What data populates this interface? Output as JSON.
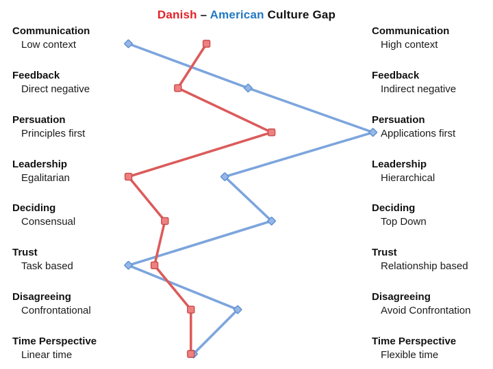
{
  "title": {
    "danish": "Danish",
    "dash": " – ",
    "american": "American",
    "rest": " Culture Gap",
    "danish_color": "#E32127",
    "american_color": "#1F78C1",
    "rest_color": "#111111"
  },
  "chart_data": {
    "type": "line",
    "title": "Danish – American Culture Gap",
    "orientation": "horizontal-scale-per-category-row",
    "grid": false,
    "legend_position": "in-title",
    "axis": {
      "min": 0,
      "max": 100
    },
    "categories": [
      "Communication",
      "Feedback",
      "Persuation",
      "Leadership",
      "Deciding",
      "Trust",
      "Disagreeing",
      "Time Perspective"
    ],
    "left_labels": [
      "Low context",
      "Direct negative",
      "Principles first",
      "Egalitarian",
      "Consensual",
      "Task based",
      "Confrontational",
      "Linear time"
    ],
    "right_labels": [
      "High context",
      "Indirect negative",
      "Applications first",
      "Hierarchical",
      "Top Down",
      "Relationship based",
      "Avoid Confrontation",
      "Flexible time"
    ],
    "series": [
      {
        "name": "Danish",
        "marker": "square",
        "line_color": "#DC5B5B",
        "marker_fill": "#EE8080",
        "marker_stroke": "#C94B4B",
        "values": [
          32,
          21,
          57,
          2,
          16,
          12,
          26,
          26
        ]
      },
      {
        "name": "American",
        "marker": "diamond",
        "line_color": "#7CA5DD",
        "marker_fill": "#95B7E6",
        "marker_stroke": "#5E8FD0",
        "values": [
          2,
          48,
          96,
          39,
          57,
          2,
          44,
          27
        ]
      }
    ]
  }
}
